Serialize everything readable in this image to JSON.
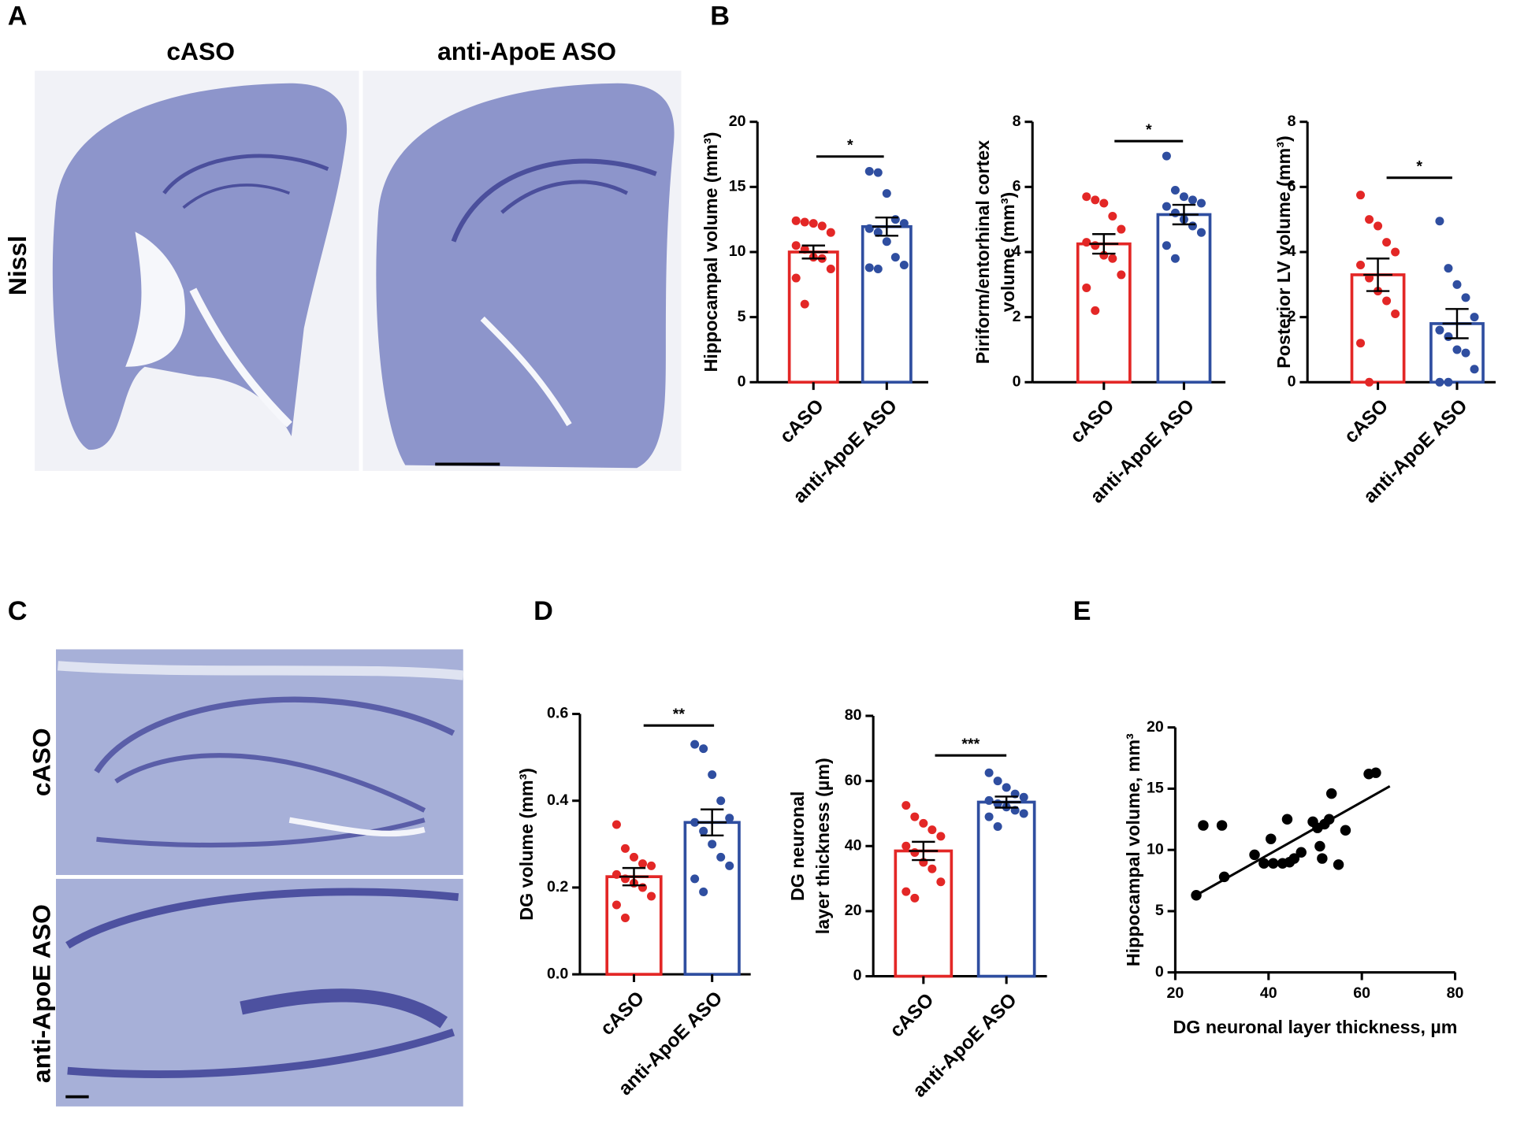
{
  "panel_labels": [
    "A",
    "B",
    "C",
    "D",
    "E"
  ],
  "panel_a": {
    "columns": [
      "cASO",
      "anti-ApoE ASO"
    ],
    "row": "Nissl"
  },
  "panel_c": {
    "rows": [
      "cASO",
      "anti-ApoE ASO"
    ]
  },
  "chart_data": [
    {
      "type": "bar",
      "ylabel": "Hippocampal volume (mm³)",
      "categories": [
        "cASO",
        "anti-ApoE ASO"
      ],
      "colors": [
        "#e32726",
        "#2f4ea0"
      ],
      "values": [
        10,
        11.95
      ],
      "errors": [
        0.5,
        0.7
      ],
      "points": [
        [
          12.4,
          12.3,
          12.2,
          12.0,
          11.5,
          10.5,
          10.2,
          9.6,
          9.5,
          8.7,
          8.0,
          6.0
        ],
        [
          16.2,
          16.1,
          14.5,
          12.5,
          12.2,
          11.8,
          11.5,
          10.8,
          9.6,
          9.0,
          8.8,
          8.7
        ]
      ],
      "significance": "*",
      "ylim": [
        0,
        20
      ],
      "yticks": [
        0,
        5,
        10,
        15,
        20
      ]
    },
    {
      "type": "bar",
      "ylabel": [
        "Piriform/entorhinal cortex",
        "volume (mm³)"
      ],
      "categories": [
        "cASO",
        "anti-ApoE ASO"
      ],
      "colors": [
        "#e32726",
        "#2f4ea0"
      ],
      "values": [
        4.25,
        5.15
      ],
      "errors": [
        0.3,
        0.3
      ],
      "points": [
        [
          5.7,
          5.6,
          5.5,
          5.1,
          4.7,
          4.3,
          4.2,
          3.9,
          3.8,
          3.3,
          2.9,
          2.2
        ],
        [
          6.95,
          5.9,
          5.7,
          5.6,
          5.5,
          5.4,
          5.2,
          5.0,
          4.8,
          4.6,
          4.2,
          3.8
        ]
      ],
      "significance": "*",
      "ylim": [
        0,
        8
      ],
      "yticks": [
        0,
        2,
        4,
        6,
        8
      ]
    },
    {
      "type": "bar",
      "ylabel": "Posterior LV volume (mm³)",
      "categories": [
        "cASO",
        "anti-ApoE ASO"
      ],
      "colors": [
        "#e32726",
        "#2f4ea0"
      ],
      "values": [
        3.3,
        1.8
      ],
      "errors": [
        0.5,
        0.45
      ],
      "points": [
        [
          5.75,
          5.0,
          4.8,
          4.3,
          4.0,
          3.6,
          3.2,
          2.8,
          2.5,
          2.1,
          1.2,
          0
        ],
        [
          4.95,
          3.5,
          3.0,
          2.6,
          2.0,
          1.6,
          1.4,
          1.0,
          0.9,
          0.4,
          0,
          0
        ]
      ],
      "significance": "*",
      "ylim": [
        0,
        8
      ],
      "yticks": [
        0,
        2,
        4,
        6,
        8
      ]
    },
    {
      "type": "bar",
      "ylabel": "DG volume (mm³)",
      "categories": [
        "cASO",
        "anti-ApoE ASO"
      ],
      "colors": [
        "#e32726",
        "#2f4ea0"
      ],
      "values": [
        0.225,
        0.35
      ],
      "errors": [
        0.02,
        0.03
      ],
      "points": [
        [
          0.345,
          0.29,
          0.27,
          0.255,
          0.25,
          0.23,
          0.22,
          0.21,
          0.2,
          0.18,
          0.16,
          0.13
        ],
        [
          0.53,
          0.52,
          0.46,
          0.4,
          0.36,
          0.35,
          0.33,
          0.3,
          0.27,
          0.25,
          0.22,
          0.19
        ]
      ],
      "significance": "**",
      "ylim": [
        0,
        0.6
      ],
      "yticks": [
        {
          "value": 0,
          "label": "0.0"
        },
        0.2,
        0.4,
        0.6
      ]
    },
    {
      "type": "bar",
      "ylabel": [
        "DG neuronal",
        "layer thickness (µm)"
      ],
      "categories": [
        "cASO",
        "anti-ApoE ASO"
      ],
      "colors": [
        "#e32726",
        "#2f4ea0"
      ],
      "values": [
        38.5,
        53.5
      ],
      "errors": [
        2.8,
        1.7
      ],
      "points": [
        [
          52.5,
          49,
          47,
          45,
          43,
          40,
          38,
          35,
          33,
          29,
          26,
          24
        ],
        [
          62.5,
          60,
          58,
          56,
          55,
          54,
          53,
          52,
          51,
          50,
          49,
          46
        ]
      ],
      "significance": "***",
      "ylim": [
        0,
        80
      ],
      "yticks": [
        0,
        20,
        40,
        60,
        80
      ]
    },
    {
      "type": "scatter",
      "xlabel": "DG neuronal layer thickness, µm",
      "ylabel": "Hippocampal volume, mm³",
      "color": "#000000",
      "x": [
        24.5,
        26,
        30,
        30.5,
        37,
        39,
        40.5,
        41,
        43,
        44,
        44.5,
        45.5,
        47,
        49.5,
        50.5,
        51,
        51.5,
        52,
        53,
        53.5,
        55,
        56.5,
        61.5,
        63
      ],
      "y": [
        6.3,
        12,
        12,
        7.8,
        9.6,
        8.9,
        10.9,
        8.9,
        8.9,
        12.5,
        9.0,
        9.3,
        9.8,
        12.3,
        11.8,
        10.3,
        9.3,
        12.1,
        12.5,
        14.6,
        8.8,
        11.6,
        16.2,
        16.3
      ],
      "trendline": {
        "x": [
          24.5,
          66
        ],
        "y": [
          6.3,
          15.2
        ]
      },
      "xlim": [
        20,
        80
      ],
      "xticks": [
        20,
        40,
        60,
        80
      ],
      "ylim": [
        0,
        20
      ],
      "yticks": [
        0,
        5,
        10,
        15,
        20
      ]
    }
  ]
}
